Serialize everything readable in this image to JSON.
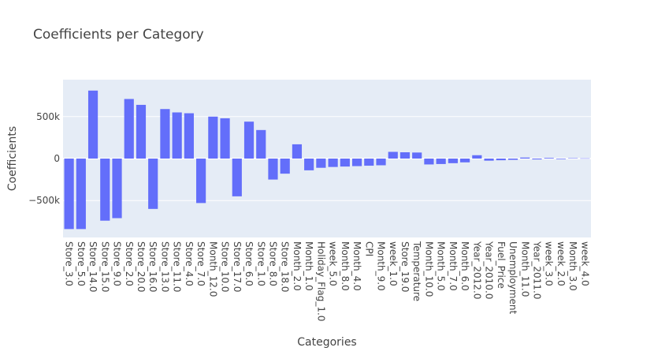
{
  "chart_data": {
    "type": "bar",
    "title": "Coefficients per Category",
    "xlabel": "Categories",
    "ylabel": "Coefficients",
    "ylim": [
      -940000,
      940000
    ],
    "yticks": [
      -500000,
      0,
      500000
    ],
    "ytick_labels": [
      "−500k",
      "0",
      "500k"
    ],
    "grid": true,
    "legend": "none",
    "colors": {
      "bar": "#636efa",
      "plot_bg": "#e5ecf6",
      "grid": "#ffffff",
      "text": "#444444"
    },
    "categories": [
      "Store_3.0",
      "Store_5.0",
      "Store_14.0",
      "Store_15.0",
      "Store_9.0",
      "Store_2.0",
      "Store_20.0",
      "Store_16.0",
      "Store_13.0",
      "Store_11.0",
      "Store_4.0",
      "Store_7.0",
      "Month_12.0",
      "Store_10.0",
      "Store_17.0",
      "Store_6.0",
      "Store_1.0",
      "Store_8.0",
      "Store_18.0",
      "Month_2.0",
      "Month_1.0",
      "Holiday_Flag_1.0",
      "week_5.0",
      "Month_8.0",
      "Month_4.0",
      "CPI",
      "Month_9.0",
      "week_1.0",
      "Store_19.0",
      "Temperature",
      "Month_10.0",
      "Month_5.0",
      "Month_7.0",
      "Month_6.0",
      "Year_2012.0",
      "Year_2010.0",
      "Fuel_Price",
      "Unemployment",
      "Month_11.0",
      "Year_2011.0",
      "week_3.0",
      "week_2.0",
      "Month_3.0",
      "week_4.0"
    ],
    "values": [
      -840000,
      -840000,
      810000,
      -740000,
      -710000,
      710000,
      640000,
      -600000,
      590000,
      550000,
      540000,
      -530000,
      500000,
      480000,
      -450000,
      440000,
      340000,
      -250000,
      -180000,
      170000,
      -140000,
      -110000,
      -100000,
      -95000,
      -90000,
      -85000,
      -80000,
      80000,
      75000,
      72000,
      -70000,
      -65000,
      -55000,
      -45000,
      40000,
      -25000,
      -20000,
      -15000,
      12000,
      -10000,
      8000,
      -7000,
      5000,
      3000
    ]
  }
}
